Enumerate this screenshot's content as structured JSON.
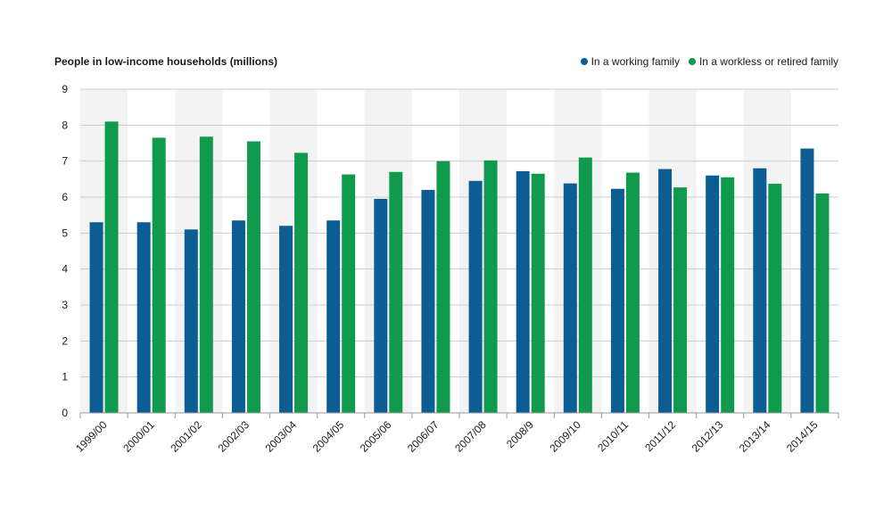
{
  "colors": {
    "working": "#0b5d93",
    "workless": "#109a4e",
    "band": "#f3f3f3",
    "grid": "#cccccc",
    "axis": "#999999"
  },
  "chart_data": {
    "type": "bar",
    "title": "People in low-income households (millions)",
    "xlabel": "",
    "ylabel": "",
    "ylim": [
      0,
      9
    ],
    "yticks": [
      0,
      1,
      2,
      3,
      4,
      5,
      6,
      7,
      8,
      9
    ],
    "grid": true,
    "legend_position": "top-right",
    "categories": [
      "1999/00",
      "2000/01",
      "2001/02",
      "2002/03",
      "2003/04",
      "2004/05",
      "2005/06",
      "2006/07",
      "2007/08",
      "2008/9",
      "2009/10",
      "2010/11",
      "2011/12",
      "2012/13",
      "2013/14",
      "2014/15"
    ],
    "series": [
      {
        "name": "In a working family",
        "color": "#0b5d93",
        "values": [
          5.3,
          5.3,
          5.1,
          5.35,
          5.2,
          5.35,
          5.95,
          6.2,
          6.45,
          6.72,
          6.38,
          6.23,
          6.78,
          6.6,
          6.8,
          7.35
        ]
      },
      {
        "name": "In a workless or retired family",
        "color": "#109a4e",
        "values": [
          8.1,
          7.65,
          7.68,
          7.55,
          7.23,
          6.63,
          6.7,
          7.0,
          7.02,
          6.65,
          7.1,
          6.68,
          6.27,
          6.55,
          6.37,
          6.1
        ]
      }
    ]
  }
}
